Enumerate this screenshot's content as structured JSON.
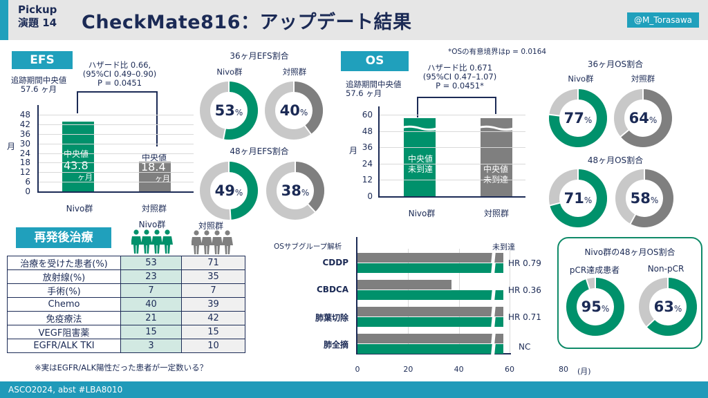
{
  "header": {
    "pickup_line1": "Pickup",
    "pickup_line2": "演題 14",
    "title": "CheckMate816：アップデート結果",
    "handle": "@M_Torasawa"
  },
  "colors": {
    "teal": "#20a0bc",
    "nivo_green": "#00916b",
    "control_gray": "#7f7f7f",
    "light_gray": "#c8c8c8",
    "navy": "#1b2a55"
  },
  "efs": {
    "tag": "EFS",
    "followup_line1": "追跡期間中央値",
    "followup_line2": "57.6 ヶ月",
    "hr_line1": "ハザード比 0.66,",
    "hr_line2": "(95%CI 0.49–0.90)",
    "hr_line3": "P = 0.0451",
    "ylabel": "月"
  },
  "os": {
    "tag": "OS",
    "note": "*OSの有意境界はp = 0.0164",
    "followup_line1": "追跡期間中央値",
    "followup_line2": "57.6 ヶ月",
    "hr_line1": "ハザード比 0.671",
    "hr_line2": "(95%CI 0.47–1.07)",
    "hr_line3": "P = 0.0451*",
    "ylabel": "月"
  },
  "chart_data": [
    {
      "type": "bar",
      "title": "EFS",
      "categories": [
        "Nivo群",
        "対照群"
      ],
      "values": [
        43.8,
        18.4
      ],
      "ylabel": "月",
      "ylim": [
        0,
        48
      ],
      "yticks": [
        "0",
        "6",
        "12",
        "18",
        "24",
        "30",
        "36",
        "42",
        "48"
      ],
      "bar_labels": [
        {
          "line1": "中央値",
          "line2": "43.8",
          "line3": "ヶ月"
        },
        {
          "line1": "中央値",
          "line2": "18.4",
          "line3": "ヶ月"
        }
      ]
    },
    {
      "type": "bar",
      "title": "OS",
      "categories": [
        "Nivo群",
        "対照群"
      ],
      "values": [
        57.6,
        57.6
      ],
      "value_note": "未到達 (bars truncated with break)",
      "ylabel": "月",
      "ylim": [
        0,
        60
      ],
      "yticks": [
        "0",
        "12",
        "24",
        "36",
        "48",
        "60"
      ],
      "bar_labels": [
        {
          "line1": "中央値",
          "line2": "未到達"
        },
        {
          "line1": "中央値",
          "line2": "未到達"
        }
      ]
    },
    {
      "type": "pie",
      "title": "36ヶ月EFS割合",
      "series": [
        {
          "name": "Nivo群",
          "value": 53,
          "label": "53",
          "unit": "%"
        },
        {
          "name": "対照群",
          "value": 40,
          "label": "40",
          "unit": "%"
        }
      ]
    },
    {
      "type": "pie",
      "title": "48ヶ月EFS割合",
      "series": [
        {
          "name": "Nivo群",
          "value": 49,
          "label": "49",
          "unit": "%"
        },
        {
          "name": "対照群",
          "value": 38,
          "label": "38",
          "unit": "%"
        }
      ]
    },
    {
      "type": "pie",
      "title": "36ヶ月OS割合",
      "series": [
        {
          "name": "Nivo群",
          "value": 77,
          "label": "77",
          "unit": "%"
        },
        {
          "name": "対照群",
          "value": 64,
          "label": "64",
          "unit": "%"
        }
      ]
    },
    {
      "type": "pie",
      "title": "48ヶ月OS割合",
      "series": [
        {
          "name": "Nivo群",
          "value": 71,
          "label": "71",
          "unit": "%"
        },
        {
          "name": "対照群",
          "value": 58,
          "label": "58",
          "unit": "%"
        }
      ]
    },
    {
      "type": "pie",
      "title": "Nivo群の48ヶ月OS割合",
      "series": [
        {
          "name": "pCR達成患者",
          "value": 95,
          "label": "95",
          "unit": "%"
        },
        {
          "name": "Non-pCR",
          "value": 63,
          "label": "63",
          "unit": "%"
        }
      ]
    },
    {
      "type": "bar",
      "orientation": "horizontal",
      "title": "OSサブグループ解析",
      "categories": [
        "CDDP",
        "CBDCA",
        "肺葉切除",
        "肺全摘"
      ],
      "series": [
        {
          "name": "対照群",
          "values": [
            57.6,
            37,
            57.6,
            57.6
          ]
        },
        {
          "name": "Nivo群",
          "values": [
            57.6,
            57.6,
            57.6,
            57.6
          ]
        }
      ],
      "annotations": [
        "HR 0.79",
        "HR 0.36",
        "HR 0.71",
        "NC"
      ],
      "top_note": "未到達",
      "xticks": [
        "0",
        "20",
        "40",
        "60",
        "80"
      ],
      "xlabel": "(月)",
      "xlim": [
        0,
        80
      ]
    }
  ],
  "labels": {
    "nivo": "Nivo群",
    "control": "対照群",
    "efs36_title": "36ヶ月EFS割合",
    "efs48_title": "48ヶ月EFS割合",
    "os36_title": "36ヶ月OS割合",
    "os48_title": "48ヶ月OS割合"
  },
  "relapse": {
    "tag": "再発後治療",
    "col_nivo": "Nivo群",
    "col_control": "対照群",
    "rows": [
      {
        "label": "治療を受けた患者(%)",
        "nivo": "53",
        "control": "71"
      },
      {
        "label": "放射線(%)",
        "nivo": "23",
        "control": "35"
      },
      {
        "label": "手術(%)",
        "nivo": "7",
        "control": "7"
      },
      {
        "label": "Chemo",
        "nivo": "40",
        "control": "39"
      },
      {
        "label": "免疫療法",
        "nivo": "21",
        "control": "42"
      },
      {
        "label": "VEGF阻害薬",
        "nivo": "15",
        "control": "15"
      },
      {
        "label": "EGFR/ALK TKI",
        "nivo": "3",
        "control": "10"
      }
    ],
    "note": "※実はEGFR/ALK陽性だった患者が一定数いる？"
  },
  "pcr_box": {
    "title": "Nivo群の48ヶ月OS割合",
    "left_label": "pCR達成患者",
    "right_label": "Non-pCR"
  },
  "footer": "ASCO2024, abst #LBA8010"
}
